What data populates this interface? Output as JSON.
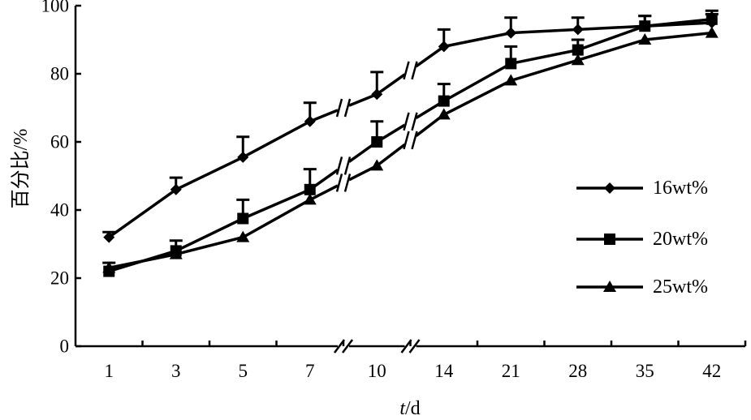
{
  "chart_data": {
    "type": "line",
    "categories": [
      "1",
      "3",
      "5",
      "7",
      "10",
      "14",
      "21",
      "28",
      "35",
      "42"
    ],
    "axis_breaks_after": [
      "7",
      "10"
    ],
    "xlabel": {
      "italic": "t",
      "rest": "/d"
    },
    "ylabel": "百分比/%",
    "ylim": [
      0,
      100
    ],
    "yticks": [
      0,
      20,
      40,
      60,
      80,
      100
    ],
    "grid": false,
    "legend_position": "right",
    "series": [
      {
        "name": "16wt%",
        "marker": "diamond",
        "values": [
          32,
          46,
          55.5,
          66,
          74,
          88,
          92,
          93,
          94,
          95
        ],
        "error": [
          1.5,
          3.5,
          6,
          5.5,
          6.5,
          5,
          4.5,
          3.5,
          3,
          2.5
        ]
      },
      {
        "name": "20wt%",
        "marker": "square",
        "values": [
          22,
          28,
          37.5,
          46,
          60,
          72,
          83,
          87,
          94,
          96
        ],
        "error": [
          2.5,
          3,
          5.5,
          6,
          6,
          5,
          5,
          3,
          3,
          2.5
        ]
      },
      {
        "name": "25wt%",
        "marker": "triangle",
        "values": [
          23,
          27,
          32,
          43,
          53,
          68,
          78,
          84,
          90,
          92
        ],
        "error": [
          0,
          0,
          0,
          0,
          0,
          0,
          0,
          0,
          0,
          0
        ]
      }
    ]
  }
}
